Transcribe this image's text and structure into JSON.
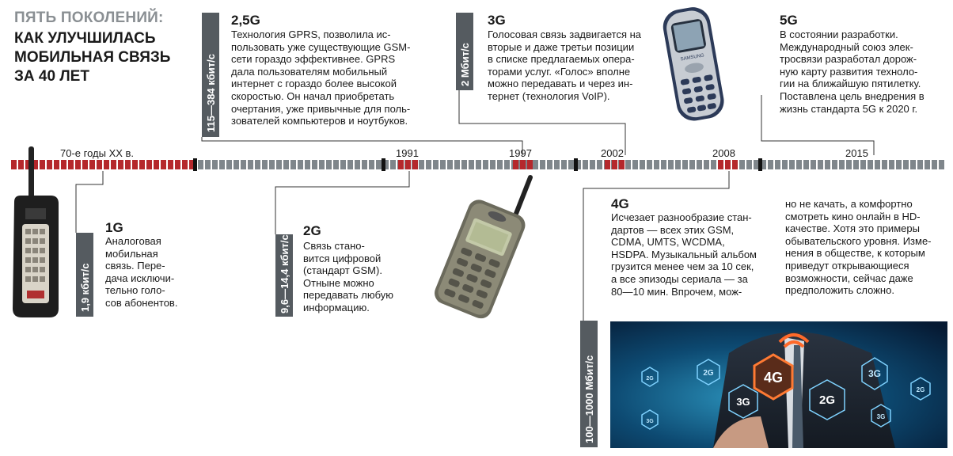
{
  "header": {
    "kicker": "ПЯТЬ ПОКОЛЕНИЙ:",
    "title_lines": [
      "КАК УЛУЧШИЛАСЬ",
      "МОБИЛЬНАЯ СВЯЗЬ",
      "ЗА 40 ЛЕТ"
    ]
  },
  "timeline": {
    "labels": [
      "70-е годы XX в.",
      "1991",
      "1997",
      "2002",
      "2008",
      "2015"
    ]
  },
  "generations": {
    "g1": {
      "name": "1G",
      "speed": "1,9 кбит/с",
      "lines": [
        "Аналоговая",
        "мобильная",
        "связь. Пере-",
        "дача исключи-",
        "тельно голо-",
        "сов абонентов."
      ]
    },
    "g25": {
      "name": "2,5G",
      "speed": "115—384 кбит/с",
      "lines": [
        "Технология GPRS, позволила ис-",
        "пользовать уже существующие GSM-",
        "сети гораздо эффективнее. GPRS",
        "дала пользователям мобильный",
        "интернет с гораздо более высокой",
        "скоростью. Он начал приобретать",
        "очертания, уже привычные для поль-",
        "зователей компьютеров и ноутбуков."
      ]
    },
    "g2": {
      "name": "2G",
      "speed": "9,6—14,4 кбит/с",
      "lines": [
        "Связь стано-",
        "вится цифровой",
        "(стандарт GSM).",
        "Отныне можно",
        "передавать любую",
        "информацию."
      ]
    },
    "g3": {
      "name": "3G",
      "speed": "2 Мбит/с",
      "lines": [
        "Голосовая связь задвигается на",
        "вторые и даже третьи позиции",
        "в списке предлагаемых опера-",
        "торами услуг. «Голос» вполне",
        "можно передавать и через ин-",
        "тернет (технология VoIP)."
      ]
    },
    "g4": {
      "name": "4G",
      "speed": "100—1000 Мбит/с",
      "lines_left": [
        "Исчезает разнообразие стан-",
        "дартов — всех этих GSM,",
        "CDMA, UMTS, WCDMA,",
        "HSDPA. Музыкальный альбом",
        "грузится менее чем за 10 сек,",
        "а все эпизоды сериала — за",
        "80—10 мин. Впрочем, мож-"
      ],
      "lines_right": [
        "но не качать, а комфортно",
        "смотреть кино онлайн в HD-",
        "качестве. Хотя это примеры",
        "обывательского уровня. Изме-",
        "нения в обществе, к которым",
        "приведут открывающиеся",
        "возможности, сейчас даже",
        "предположить сложно."
      ]
    },
    "g5": {
      "name": "5G",
      "lines": [
        "В состоянии разработки.",
        "Международный союз элек-",
        "тросвязи разработал дорож-",
        "ную карту развития техноло-",
        "гии на ближайшую пятилетку.",
        "Поставлена цель внедрения в",
        "жизнь стандарта 5G к 2020 г."
      ]
    }
  },
  "photo": {
    "hex_labels": [
      "4G",
      "2G",
      "3G",
      "2G",
      "3G",
      "2G",
      "3G",
      "2G",
      "3G"
    ]
  },
  "phone3g": {
    "brand": "SAMSUNG"
  },
  "colors": {
    "red": "#b5282c",
    "gray": "#7f868b",
    "black": "#111111",
    "speed_box": "#555b60"
  }
}
